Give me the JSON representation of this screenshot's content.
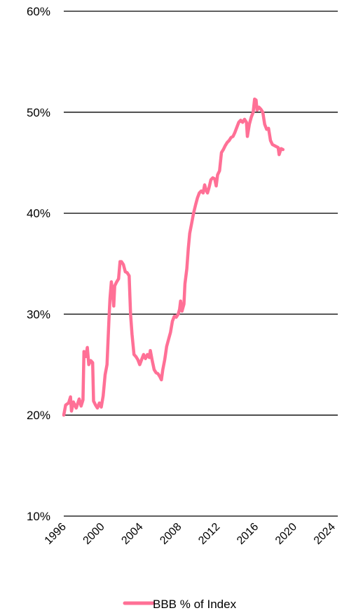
{
  "chart_data": {
    "type": "line",
    "title": "",
    "xlabel": "",
    "ylabel": "",
    "x_ticks": [
      "1996",
      "2000",
      "2004",
      "2008",
      "2012",
      "2016",
      "2020",
      "2024"
    ],
    "y_ticks": [
      "10%",
      "20%",
      "30%",
      "40%",
      "50%",
      "60%"
    ],
    "xlim": [
      1996,
      2024.5
    ],
    "ylim": [
      10,
      60
    ],
    "grid": "horizontal",
    "legend_position": "bottom-center",
    "series": [
      {
        "name": "BBB % of Index",
        "color": "#ff7096",
        "points": [
          [
            1996.0,
            20.0
          ],
          [
            1996.2,
            21.0
          ],
          [
            1996.5,
            21.2
          ],
          [
            1996.7,
            21.8
          ],
          [
            1996.8,
            20.4
          ],
          [
            1997.0,
            21.3
          ],
          [
            1997.3,
            20.7
          ],
          [
            1997.6,
            21.6
          ],
          [
            1997.8,
            20.9
          ],
          [
            1998.0,
            21.5
          ],
          [
            1998.1,
            26.3
          ],
          [
            1998.3,
            25.8
          ],
          [
            1998.45,
            26.7
          ],
          [
            1998.6,
            25.0
          ],
          [
            1998.8,
            25.4
          ],
          [
            1999.0,
            25.2
          ],
          [
            1999.1,
            21.4
          ],
          [
            1999.3,
            21.0
          ],
          [
            1999.5,
            20.7
          ],
          [
            1999.7,
            21.2
          ],
          [
            1999.9,
            20.8
          ],
          [
            2000.1,
            21.9
          ],
          [
            2000.3,
            24.0
          ],
          [
            2000.5,
            25.0
          ],
          [
            2000.7,
            29.5
          ],
          [
            2000.8,
            31.5
          ],
          [
            2000.95,
            33.2
          ],
          [
            2001.1,
            31.8
          ],
          [
            2001.2,
            30.8
          ],
          [
            2001.3,
            32.8
          ],
          [
            2001.5,
            33.2
          ],
          [
            2001.7,
            33.5
          ],
          [
            2001.85,
            35.2
          ],
          [
            2002.0,
            35.2
          ],
          [
            2002.2,
            34.9
          ],
          [
            2002.4,
            34.2
          ],
          [
            2002.6,
            34.1
          ],
          [
            2002.8,
            33.8
          ],
          [
            2002.95,
            30.0
          ],
          [
            2003.1,
            28.0
          ],
          [
            2003.3,
            26.0
          ],
          [
            2003.5,
            25.8
          ],
          [
            2003.7,
            25.5
          ],
          [
            2003.9,
            25.0
          ],
          [
            2004.1,
            25.5
          ],
          [
            2004.3,
            26.0
          ],
          [
            2004.5,
            25.6
          ],
          [
            2004.7,
            26.0
          ],
          [
            2004.9,
            25.7
          ],
          [
            2005.0,
            26.4
          ],
          [
            2005.2,
            25.4
          ],
          [
            2005.4,
            24.5
          ],
          [
            2005.6,
            24.2
          ],
          [
            2005.8,
            24.1
          ],
          [
            2006.0,
            23.8
          ],
          [
            2006.15,
            23.5
          ],
          [
            2006.3,
            24.5
          ],
          [
            2006.5,
            25.5
          ],
          [
            2006.7,
            26.8
          ],
          [
            2006.9,
            27.5
          ],
          [
            2007.1,
            28.2
          ],
          [
            2007.3,
            29.3
          ],
          [
            2007.5,
            29.8
          ],
          [
            2007.7,
            29.7
          ],
          [
            2007.9,
            30.0
          ],
          [
            2008.05,
            30.5
          ],
          [
            2008.15,
            31.3
          ],
          [
            2008.3,
            30.3
          ],
          [
            2008.5,
            31.0
          ],
          [
            2008.6,
            33.0
          ],
          [
            2008.8,
            34.5
          ],
          [
            2008.95,
            36.5
          ],
          [
            2009.1,
            38.0
          ],
          [
            2009.3,
            39.0
          ],
          [
            2009.5,
            40.0
          ],
          [
            2009.7,
            40.8
          ],
          [
            2009.9,
            41.5
          ],
          [
            2010.1,
            42.0
          ],
          [
            2010.3,
            42.2
          ],
          [
            2010.5,
            42.0
          ],
          [
            2010.65,
            42.8
          ],
          [
            2010.8,
            42.3
          ],
          [
            2010.95,
            42.0
          ],
          [
            2011.1,
            42.5
          ],
          [
            2011.3,
            43.3
          ],
          [
            2011.5,
            43.5
          ],
          [
            2011.7,
            43.4
          ],
          [
            2011.85,
            42.7
          ],
          [
            2012.0,
            43.8
          ],
          [
            2012.2,
            44.2
          ],
          [
            2012.4,
            46.0
          ],
          [
            2012.6,
            46.3
          ],
          [
            2012.8,
            46.7
          ],
          [
            2013.0,
            47.0
          ],
          [
            2013.2,
            47.2
          ],
          [
            2013.4,
            47.5
          ],
          [
            2013.6,
            47.6
          ],
          [
            2013.8,
            48.0
          ],
          [
            2014.0,
            48.5
          ],
          [
            2014.2,
            49.0
          ],
          [
            2014.4,
            49.2
          ],
          [
            2014.6,
            49.0
          ],
          [
            2014.8,
            49.3
          ],
          [
            2015.0,
            49.0
          ],
          [
            2015.1,
            47.6
          ],
          [
            2015.3,
            48.8
          ],
          [
            2015.5,
            49.5
          ],
          [
            2015.7,
            50.0
          ],
          [
            2015.85,
            51.3
          ],
          [
            2016.0,
            51.2
          ],
          [
            2016.1,
            50.2
          ],
          [
            2016.3,
            50.5
          ],
          [
            2016.5,
            50.3
          ],
          [
            2016.7,
            50.0
          ],
          [
            2016.9,
            48.8
          ],
          [
            2017.1,
            48.3
          ],
          [
            2017.3,
            48.4
          ],
          [
            2017.5,
            47.2
          ],
          [
            2017.7,
            46.8
          ],
          [
            2017.9,
            46.7
          ],
          [
            2018.1,
            46.6
          ],
          [
            2018.3,
            46.5
          ],
          [
            2018.4,
            45.8
          ],
          [
            2018.6,
            46.4
          ],
          [
            2018.8,
            46.3
          ]
        ]
      }
    ]
  }
}
